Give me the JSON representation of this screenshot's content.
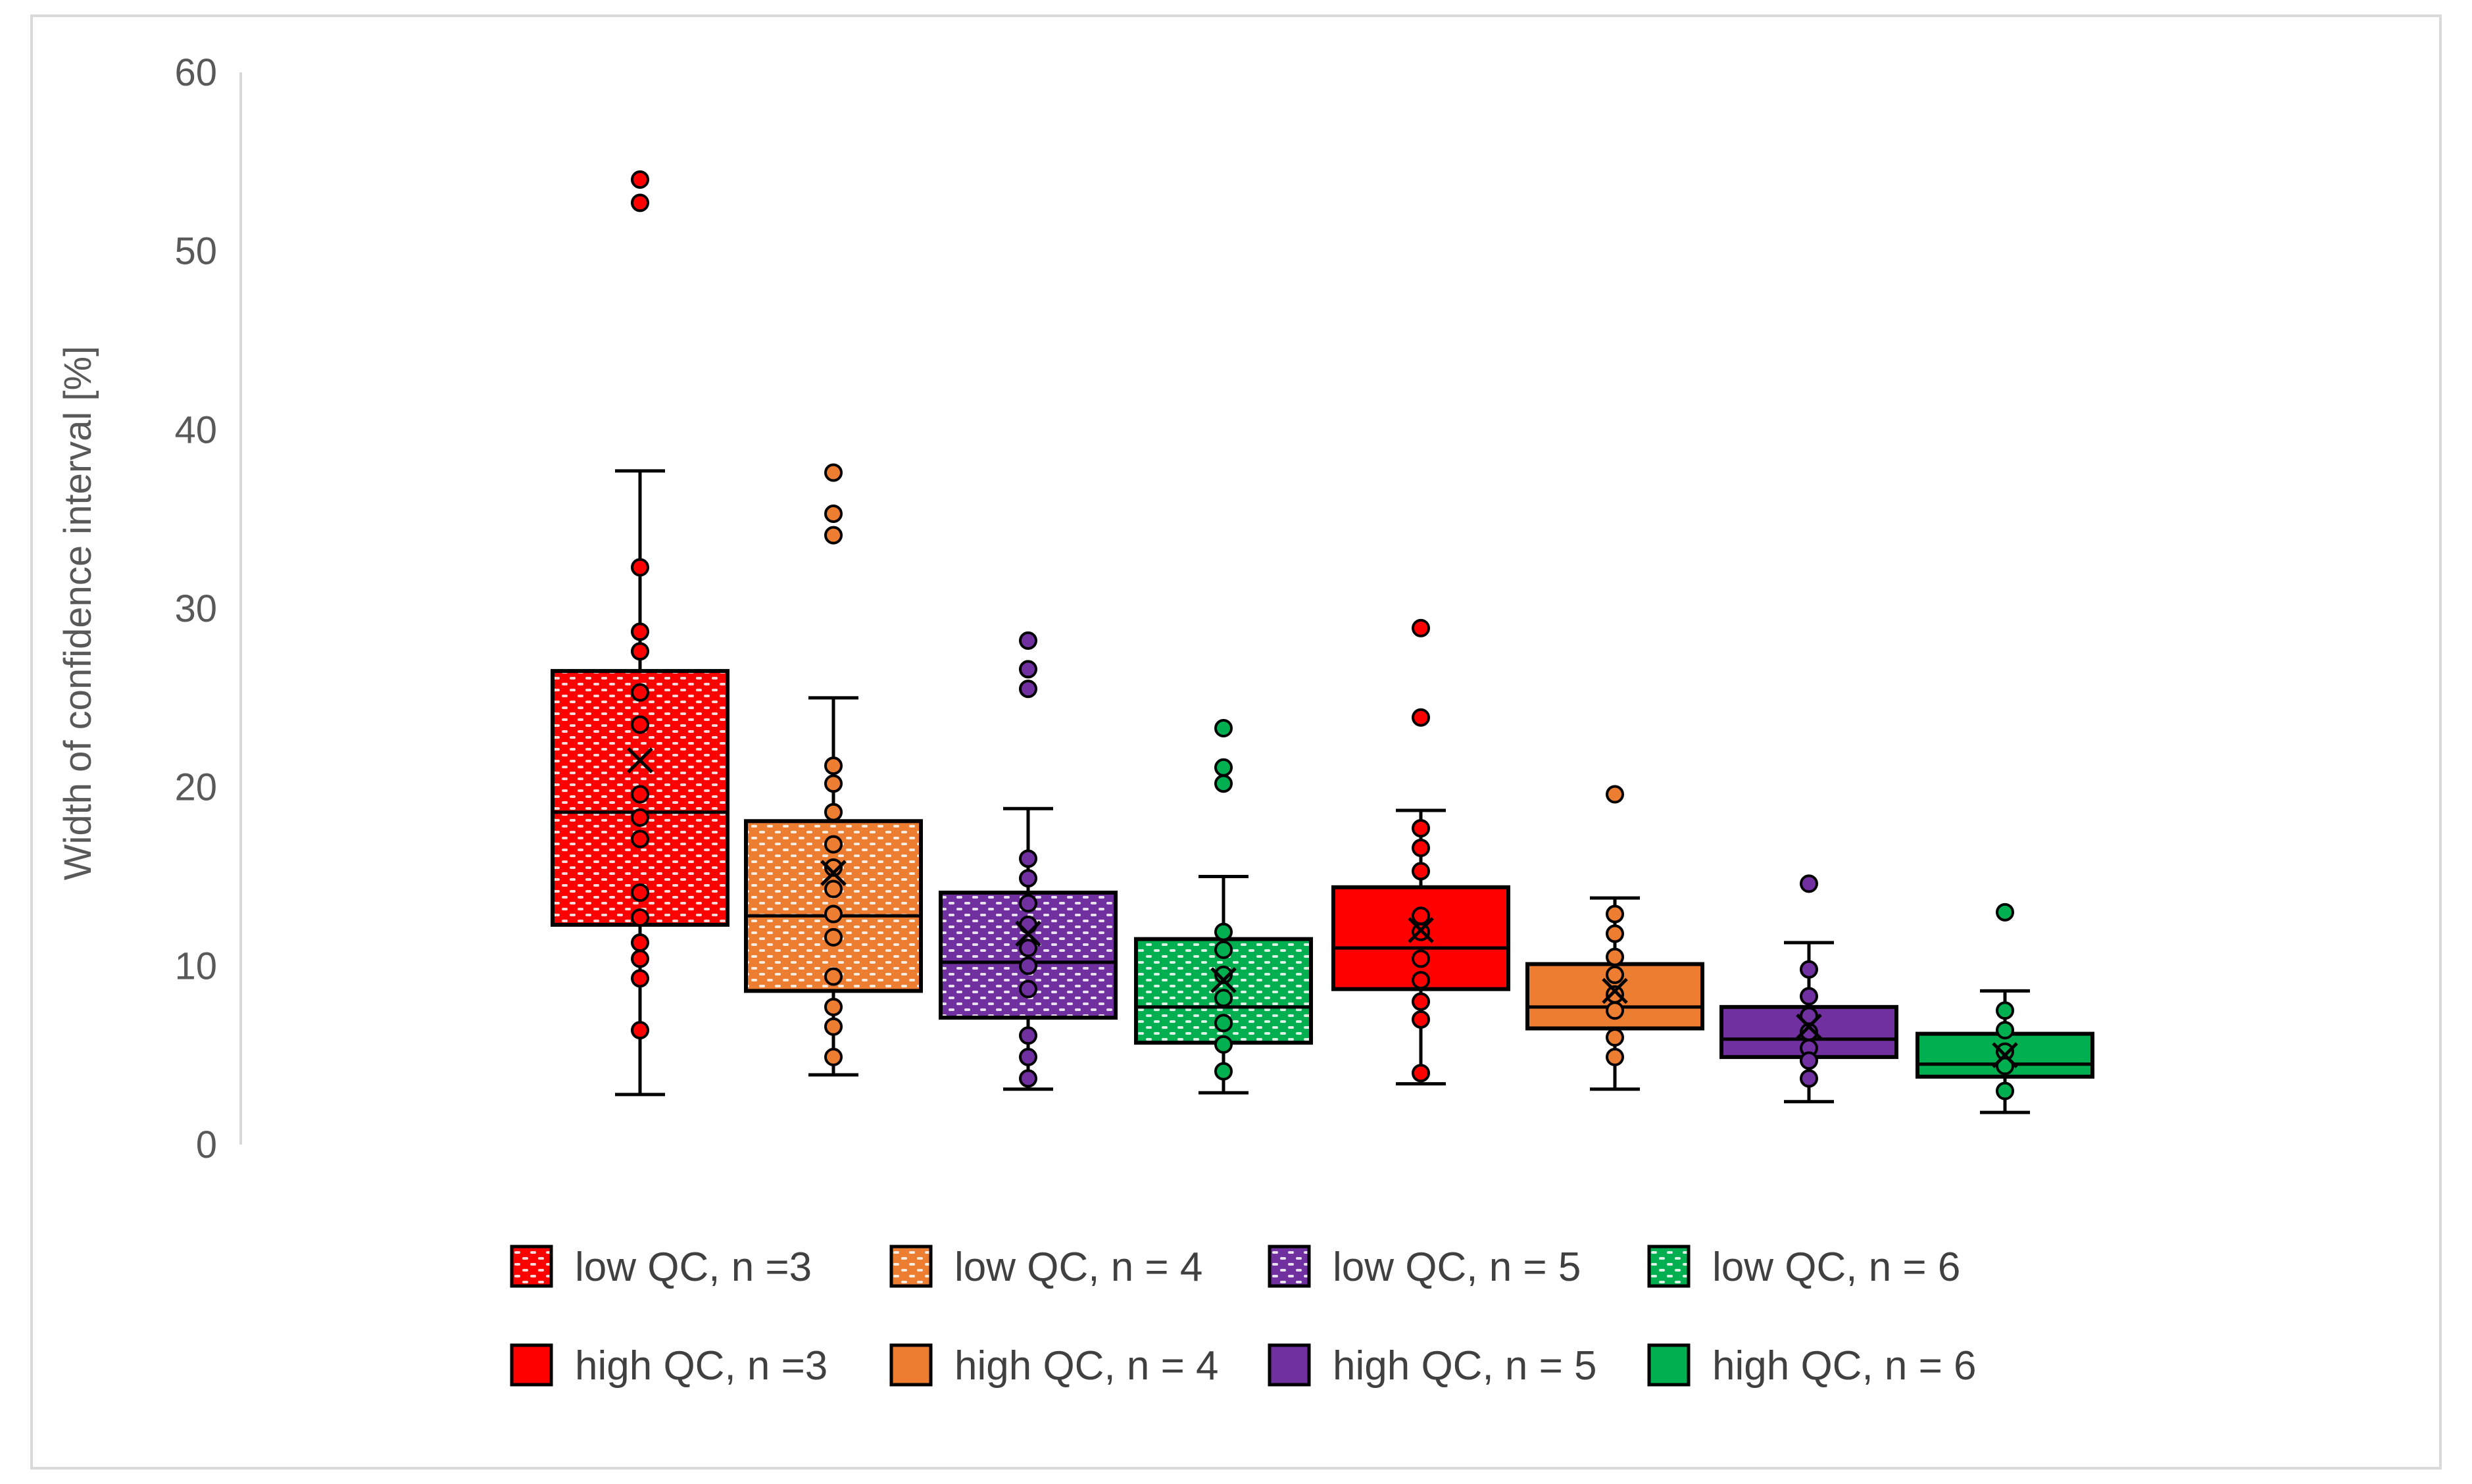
{
  "chart_data": {
    "type": "boxplot",
    "title": "",
    "xlabel": "",
    "ylabel": "Width of confidence interval [%]",
    "ylim": [
      0,
      60
    ],
    "yticks": [
      0,
      10,
      20,
      30,
      40,
      50,
      60
    ],
    "grid": false,
    "legend_position": "bottom",
    "colors": {
      "red": "#ff0000",
      "orange": "#ed7d31",
      "purple": "#7030a0",
      "green": "#00b050"
    },
    "series": [
      {
        "name": "low QC, n =3",
        "color": "#ff0000",
        "pattern": true,
        "whisker_low": 2.8,
        "q1": 12.3,
        "median": 18.6,
        "q3": 26.5,
        "whisker_high": 37.7,
        "mean": 21.5,
        "points": [
          54.0,
          52.7,
          32.3,
          28.7,
          27.6,
          25.3,
          23.5,
          19.6,
          18.3,
          17.1,
          14.1,
          12.7,
          11.3,
          10.4,
          9.3,
          6.4
        ]
      },
      {
        "name": "low QC, n = 4",
        "color": "#ed7d31",
        "pattern": true,
        "whisker_low": 3.9,
        "q1": 8.6,
        "median": 12.8,
        "q3": 18.1,
        "whisker_high": 25.0,
        "mean": 15.2,
        "points": [
          37.6,
          35.3,
          34.1,
          21.2,
          20.2,
          18.6,
          16.8,
          15.5,
          14.3,
          12.9,
          11.6,
          9.4,
          7.7,
          6.6,
          4.9
        ]
      },
      {
        "name": "low QC, n = 5",
        "color": "#7030a0",
        "pattern": true,
        "whisker_low": 3.1,
        "q1": 7.1,
        "median": 10.2,
        "q3": 14.1,
        "whisker_high": 18.8,
        "mean": 11.8,
        "points": [
          28.2,
          26.6,
          25.5,
          16.0,
          14.9,
          13.5,
          12.3,
          11.0,
          10.0,
          8.7,
          6.1,
          4.9,
          3.7
        ]
      },
      {
        "name": "low QC, n = 6",
        "color": "#00b050",
        "pattern": true,
        "whisker_low": 2.9,
        "q1": 5.7,
        "median": 7.7,
        "q3": 11.5,
        "whisker_high": 15.0,
        "mean": 9.2,
        "points": [
          23.3,
          21.1,
          20.2,
          11.9,
          10.9,
          9.5,
          8.2,
          6.8,
          5.6,
          4.1
        ]
      },
      {
        "name": "high QC, n =3",
        "color": "#ff0000",
        "pattern": false,
        "whisker_low": 3.4,
        "q1": 8.7,
        "median": 11.0,
        "q3": 14.4,
        "whisker_high": 18.7,
        "mean": 12.0,
        "points": [
          28.9,
          23.9,
          17.7,
          16.6,
          15.3,
          12.8,
          11.9,
          10.4,
          9.2,
          8.0,
          7.0,
          4.0
        ]
      },
      {
        "name": "high QC, n = 4",
        "color": "#ed7d31",
        "pattern": false,
        "whisker_low": 3.1,
        "q1": 6.5,
        "median": 7.7,
        "q3": 10.1,
        "whisker_high": 13.8,
        "mean": 8.6,
        "points": [
          19.6,
          12.9,
          11.8,
          10.5,
          9.5,
          8.4,
          7.5,
          6.0,
          4.9
        ]
      },
      {
        "name": "high QC, n = 5",
        "color": "#7030a0",
        "pattern": false,
        "whisker_low": 2.4,
        "q1": 4.9,
        "median": 5.9,
        "q3": 7.7,
        "whisker_high": 11.3,
        "mean": 6.6,
        "points": [
          14.6,
          9.8,
          8.3,
          7.2,
          6.3,
          5.4,
          4.7,
          3.7
        ]
      },
      {
        "name": "high QC, n = 6",
        "color": "#00b050",
        "pattern": false,
        "whisker_low": 1.8,
        "q1": 3.8,
        "median": 4.5,
        "q3": 6.2,
        "whisker_high": 8.6,
        "mean": 5.0,
        "points": [
          13.0,
          7.5,
          6.4,
          5.2,
          4.4,
          3.0
        ]
      }
    ]
  }
}
